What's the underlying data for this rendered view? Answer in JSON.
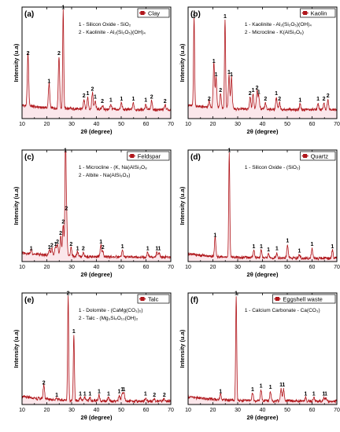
{
  "chart_data": [
    {
      "type": "line",
      "panel": "(a)",
      "legend": "Clay",
      "annotations": [
        "1 - Silicon Oxide - SiO₂",
        "2 - Kaolinite - Al₂(Si₂O₅)(OH)₄"
      ],
      "xlabel": "2θ (degree)",
      "ylabel": "Intensity (u.a)",
      "xlim": [
        10,
        70
      ],
      "xticks": [
        10,
        20,
        30,
        40,
        50,
        60,
        70
      ],
      "ylim": [
        0,
        100
      ],
      "baseline": 8,
      "peaks": [
        {
          "x": 12.4,
          "y": 55,
          "label": "2"
        },
        {
          "x": 20.9,
          "y": 30,
          "label": "1"
        },
        {
          "x": 24.9,
          "y": 55,
          "label": "2"
        },
        {
          "x": 26.6,
          "y": 96,
          "label": "1"
        },
        {
          "x": 35.0,
          "y": 17,
          "label": "2"
        },
        {
          "x": 36.5,
          "y": 19,
          "label": "1"
        },
        {
          "x": 38.4,
          "y": 23,
          "label": "2"
        },
        {
          "x": 39.5,
          "y": 16,
          "label": "1"
        },
        {
          "x": 42.4,
          "y": 12,
          "label": "2"
        },
        {
          "x": 45.8,
          "y": 13,
          "label": "1"
        },
        {
          "x": 50.1,
          "y": 14,
          "label": "1"
        },
        {
          "x": 54.9,
          "y": 14,
          "label": "1"
        },
        {
          "x": 59.9,
          "y": 13,
          "label": "1"
        },
        {
          "x": 62.3,
          "y": 16,
          "label": "2"
        },
        {
          "x": 67.7,
          "y": 12,
          "label": "2"
        }
      ]
    },
    {
      "type": "line",
      "panel": "(b)",
      "legend": "Kaolin",
      "annotations": [
        "1 - Kaolinite - Al₂(Si₂O₅)(OH)₄",
        "2 - Microcline - K(AlSi₃O₈)"
      ],
      "xlabel": "2θ (degree)",
      "ylabel": "Intensity (u.a)",
      "xlim": [
        10,
        70
      ],
      "xticks": [
        10,
        20,
        30,
        40,
        50,
        60,
        70
      ],
      "ylim": [
        0,
        100
      ],
      "baseline": 8,
      "peaks": [
        {
          "x": 12.4,
          "y": 88,
          "label": "1"
        },
        {
          "x": 18.5,
          "y": 14,
          "label": "2"
        },
        {
          "x": 20.4,
          "y": 48,
          "label": "1"
        },
        {
          "x": 21.3,
          "y": 36,
          "label": "1"
        },
        {
          "x": 23.1,
          "y": 22,
          "label": "2"
        },
        {
          "x": 24.9,
          "y": 88,
          "label": "1"
        },
        {
          "x": 26.5,
          "y": 38,
          "label": "1"
        },
        {
          "x": 27.5,
          "y": 36,
          "label": "1"
        },
        {
          "x": 35.0,
          "y": 19,
          "label": "2"
        },
        {
          "x": 36.2,
          "y": 22,
          "label": "1"
        },
        {
          "x": 37.8,
          "y": 24,
          "label": "2"
        },
        {
          "x": 38.5,
          "y": 20,
          "label": "1"
        },
        {
          "x": 41.2,
          "y": 14,
          "label": "2"
        },
        {
          "x": 45.6,
          "y": 19,
          "label": "1"
        },
        {
          "x": 46.9,
          "y": 14,
          "label": "2"
        },
        {
          "x": 55.2,
          "y": 13,
          "label": "1"
        },
        {
          "x": 62.4,
          "y": 14,
          "label": "1"
        },
        {
          "x": 64.8,
          "y": 14,
          "label": "2"
        },
        {
          "x": 66.4,
          "y": 17,
          "label": "2"
        }
      ]
    },
    {
      "type": "line",
      "panel": "(c)",
      "legend": "Feldspar",
      "annotations": [
        "1 - Microcline - (K, Na)AlSi₃O₈",
        "2 - Albite - Na(AlSi₃O₈)"
      ],
      "xlabel": "2θ (degree)",
      "ylabel": "Intensity (u.a)",
      "xlim": [
        10,
        70
      ],
      "xticks": [
        10,
        20,
        30,
        40,
        50,
        60,
        70
      ],
      "ylim": [
        0,
        100
      ],
      "baseline": 4,
      "peaks": [
        {
          "x": 13.7,
          "y": 8,
          "label": "1"
        },
        {
          "x": 21.0,
          "y": 9,
          "label": "1"
        },
        {
          "x": 22.0,
          "y": 11,
          "label": "2"
        },
        {
          "x": 23.5,
          "y": 12,
          "label": "1"
        },
        {
          "x": 24.3,
          "y": 14,
          "label": "2"
        },
        {
          "x": 25.6,
          "y": 22,
          "label": "2"
        },
        {
          "x": 26.6,
          "y": 32,
          "label": "2"
        },
        {
          "x": 27.5,
          "y": 96,
          "label": "1"
        },
        {
          "x": 27.9,
          "y": 44,
          "label": "2"
        },
        {
          "x": 29.8,
          "y": 12,
          "label": "2"
        },
        {
          "x": 32.4,
          "y": 8,
          "label": "1"
        },
        {
          "x": 34.7,
          "y": 8,
          "label": "2"
        },
        {
          "x": 41.8,
          "y": 14,
          "label": "1"
        },
        {
          "x": 42.6,
          "y": 9,
          "label": "2"
        },
        {
          "x": 50.5,
          "y": 10,
          "label": "1"
        },
        {
          "x": 60.7,
          "y": 8,
          "label": "1"
        },
        {
          "x": 64.4,
          "y": 8,
          "label": "1"
        },
        {
          "x": 65.4,
          "y": 8,
          "label": "1"
        }
      ]
    },
    {
      "type": "line",
      "panel": "(d)",
      "legend": "Quartz",
      "annotations": [
        "1 - Silicon Oxide - (SiO₂)"
      ],
      "xlabel": "2θ (degree)",
      "ylabel": "Intensity (u.a)",
      "xlim": [
        10,
        70
      ],
      "xticks": [
        10,
        20,
        30,
        40,
        50,
        60,
        70
      ],
      "ylim": [
        0,
        100
      ],
      "baseline": 3,
      "peaks": [
        {
          "x": 20.9,
          "y": 20,
          "label": "1"
        },
        {
          "x": 26.6,
          "y": 96,
          "label": "1"
        },
        {
          "x": 36.5,
          "y": 10,
          "label": "1"
        },
        {
          "x": 39.5,
          "y": 10,
          "label": "1"
        },
        {
          "x": 42.4,
          "y": 7,
          "label": "1"
        },
        {
          "x": 45.8,
          "y": 8,
          "label": "1"
        },
        {
          "x": 50.1,
          "y": 15,
          "label": "1"
        },
        {
          "x": 54.9,
          "y": 6,
          "label": "1"
        },
        {
          "x": 60.0,
          "y": 12,
          "label": "1"
        },
        {
          "x": 68.2,
          "y": 10,
          "label": "1"
        }
      ]
    },
    {
      "type": "line",
      "panel": "(e)",
      "legend": "Talc",
      "annotations": [
        "1 - Dolomite - (CaMg(CO₃)₂)",
        "2 - Talc - (Mg₃Si₄O₁₀(OH)₂"
      ],
      "xlabel": "2θ (degree)",
      "ylabel": "Intensity (u.a)",
      "xlim": [
        10,
        70
      ],
      "xticks": [
        10,
        20,
        30,
        40,
        50,
        60,
        70
      ],
      "ylim": [
        0,
        100
      ],
      "baseline": 3,
      "peaks": [
        {
          "x": 18.8,
          "y": 16,
          "label": "2"
        },
        {
          "x": 24.0,
          "y": 5,
          "label": "1"
        },
        {
          "x": 28.6,
          "y": 96,
          "label": "2"
        },
        {
          "x": 30.9,
          "y": 62,
          "label": "1"
        },
        {
          "x": 33.5,
          "y": 6,
          "label": "1"
        },
        {
          "x": 35.3,
          "y": 6,
          "label": "1"
        },
        {
          "x": 37.4,
          "y": 6,
          "label": "1"
        },
        {
          "x": 41.1,
          "y": 8,
          "label": "1"
        },
        {
          "x": 44.9,
          "y": 6,
          "label": "1"
        },
        {
          "x": 49.2,
          "y": 8,
          "label": "1"
        },
        {
          "x": 50.4,
          "y": 10,
          "label": "1"
        },
        {
          "x": 51.1,
          "y": 10,
          "label": "1"
        },
        {
          "x": 59.8,
          "y": 6,
          "label": "1"
        },
        {
          "x": 63.4,
          "y": 5,
          "label": "2"
        },
        {
          "x": 67.4,
          "y": 5,
          "label": "2"
        }
      ]
    },
    {
      "type": "line",
      "panel": "(f)",
      "legend": "Eggshell waste",
      "annotations": [
        "1 - Calcium Carbonate - Ca(CO₃)"
      ],
      "xlabel": "2θ (degree)",
      "ylabel": "Intensity (u.a)",
      "xlim": [
        10,
        70
      ],
      "xticks": [
        10,
        20,
        30,
        40,
        50,
        60,
        70
      ],
      "ylim": [
        0,
        100
      ],
      "baseline": 3,
      "peaks": [
        {
          "x": 23.1,
          "y": 8,
          "label": "1"
        },
        {
          "x": 29.4,
          "y": 96,
          "label": "1"
        },
        {
          "x": 36.0,
          "y": 10,
          "label": "1"
        },
        {
          "x": 39.4,
          "y": 13,
          "label": "1"
        },
        {
          "x": 43.2,
          "y": 12,
          "label": "1"
        },
        {
          "x": 47.5,
          "y": 14,
          "label": "1"
        },
        {
          "x": 48.5,
          "y": 14,
          "label": "1"
        },
        {
          "x": 57.4,
          "y": 6,
          "label": "1"
        },
        {
          "x": 60.7,
          "y": 6,
          "label": "1"
        },
        {
          "x": 64.7,
          "y": 6,
          "label": "1"
        },
        {
          "x": 65.6,
          "y": 6,
          "label": "1"
        }
      ]
    }
  ],
  "colors": {
    "line": "#b0161b",
    "area": "#f6c9d2",
    "legend_swatch": "#b0161b"
  }
}
